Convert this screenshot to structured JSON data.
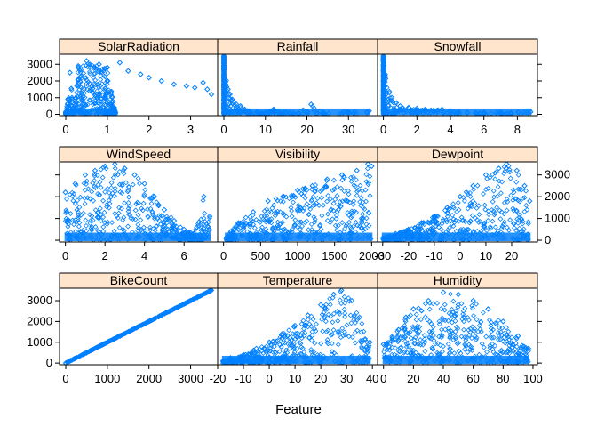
{
  "figure": {
    "xlabel": "Feature",
    "ylabel": "",
    "strip_color": "#ffe5cc",
    "point_color": "#0080ff",
    "y_ticks": [
      0,
      1000,
      2000,
      3000
    ],
    "ylim": [
      -80,
      3600
    ]
  },
  "chart_data": [
    {
      "type": "scatter",
      "title": "SolarRadiation",
      "xlabel": "",
      "ylabel": "",
      "xlim": [
        -0.15,
        3.65
      ],
      "xticks": [
        0,
        1,
        2,
        3
      ],
      "ylim": [
        -80,
        3600
      ],
      "shape": "solar",
      "points": [
        [
          0.0,
          150
        ],
        [
          0.05,
          900
        ],
        [
          0.1,
          2500
        ],
        [
          0.3,
          2900
        ],
        [
          0.5,
          3200
        ],
        [
          0.8,
          3000
        ],
        [
          1.0,
          2800
        ],
        [
          1.3,
          3100
        ],
        [
          1.5,
          2600
        ],
        [
          1.8,
          2400
        ],
        [
          2.0,
          2200
        ],
        [
          2.3,
          2000
        ],
        [
          2.6,
          1800
        ],
        [
          2.9,
          1700
        ],
        [
          3.1,
          1600
        ],
        [
          3.3,
          1900
        ],
        [
          3.4,
          1500
        ],
        [
          3.5,
          1200
        ],
        [
          0.2,
          200
        ],
        [
          1.2,
          100
        ]
      ]
    },
    {
      "type": "scatter",
      "title": "Rainfall",
      "xlabel": "",
      "ylabel": "",
      "xlim": [
        -1.5,
        37.0
      ],
      "xticks": [
        0,
        10,
        20,
        30
      ],
      "ylim": [
        -80,
        3600
      ],
      "shape": "decay",
      "points": [
        [
          0.0,
          3500
        ],
        [
          0.2,
          2800
        ],
        [
          1.0,
          1500
        ],
        [
          2.0,
          900
        ],
        [
          3.0,
          600
        ],
        [
          4.0,
          500
        ],
        [
          5.0,
          300
        ],
        [
          6.0,
          200
        ],
        [
          8.0,
          150
        ],
        [
          10.0,
          100
        ],
        [
          12.0,
          300
        ],
        [
          15.0,
          120
        ],
        [
          18.0,
          80
        ],
        [
          21.0,
          600
        ],
        [
          24.0,
          100
        ],
        [
          29.0,
          150
        ],
        [
          35.0,
          200
        ]
      ]
    },
    {
      "type": "scatter",
      "title": "Snowfall",
      "xlabel": "",
      "ylabel": "",
      "xlim": [
        -0.35,
        9.2
      ],
      "xticks": [
        0,
        2,
        4,
        6,
        8
      ],
      "ylim": [
        -80,
        3600
      ],
      "shape": "decay",
      "points": [
        [
          0.0,
          3500
        ],
        [
          0.1,
          2400
        ],
        [
          0.5,
          1000
        ],
        [
          1.0,
          500
        ],
        [
          1.5,
          400
        ],
        [
          2.0,
          350
        ],
        [
          2.5,
          300
        ],
        [
          3.0,
          250
        ],
        [
          3.5,
          300
        ],
        [
          4.0,
          200
        ],
        [
          4.5,
          150
        ],
        [
          5.0,
          100
        ],
        [
          5.5,
          80
        ],
        [
          6.0,
          100
        ],
        [
          7.0,
          120
        ],
        [
          8.8,
          150
        ]
      ]
    },
    {
      "type": "scatter",
      "title": "WindSpeed",
      "xlabel": "",
      "ylabel": "",
      "xlim": [
        -0.3,
        7.7
      ],
      "xticks": [
        0,
        2,
        4,
        6
      ],
      "ylim": [
        -80,
        3600
      ],
      "shape": "hump",
      "points": [
        [
          0.0,
          2200
        ],
        [
          0.5,
          2600
        ],
        [
          1.0,
          3000
        ],
        [
          1.5,
          3200
        ],
        [
          2.0,
          3400
        ],
        [
          2.5,
          3500
        ],
        [
          3.0,
          3300
        ],
        [
          3.5,
          3000
        ],
        [
          4.0,
          2600
        ],
        [
          4.5,
          2000
        ],
        [
          5.0,
          1400
        ],
        [
          5.5,
          900
        ],
        [
          6.0,
          500
        ],
        [
          6.5,
          300
        ],
        [
          7.0,
          2000
        ],
        [
          7.3,
          1100
        ]
      ]
    },
    {
      "type": "scatter",
      "title": "Visibility",
      "xlabel": "",
      "ylabel": "",
      "xlim": [
        -80,
        2080
      ],
      "xticks": [
        0,
        500,
        1000,
        1500,
        2000
      ],
      "ylim": [
        -80,
        3600
      ],
      "shape": "rising",
      "points": [
        [
          30,
          100
        ],
        [
          100,
          400
        ],
        [
          200,
          800
        ],
        [
          400,
          1300
        ],
        [
          600,
          1800
        ],
        [
          800,
          2000
        ],
        [
          1000,
          2300
        ],
        [
          1200,
          2500
        ],
        [
          1400,
          2800
        ],
        [
          1600,
          3000
        ],
        [
          1800,
          3200
        ],
        [
          1950,
          3500
        ],
        [
          2000,
          3400
        ]
      ]
    },
    {
      "type": "scatter",
      "title": "Dewpoint",
      "xlabel": "",
      "ylabel": "",
      "xlim": [
        -32,
        30
      ],
      "xticks": [
        -30,
        -20,
        -10,
        0,
        10,
        20
      ],
      "ylim": [
        -80,
        3600
      ],
      "shape": "rising",
      "points": [
        [
          -30,
          100
        ],
        [
          -25,
          300
        ],
        [
          -20,
          500
        ],
        [
          -15,
          800
        ],
        [
          -10,
          1100
        ],
        [
          -5,
          1500
        ],
        [
          0,
          2000
        ],
        [
          5,
          2500
        ],
        [
          10,
          3000
        ],
        [
          15,
          3300
        ],
        [
          18,
          3500
        ],
        [
          22,
          3200
        ],
        [
          25,
          2500
        ],
        [
          27,
          1800
        ]
      ]
    },
    {
      "type": "scatter",
      "title": "BikeCount",
      "xlabel": "",
      "ylabel": "",
      "xlim": [
        -150,
        3650
      ],
      "xticks": [
        0,
        1000,
        2000,
        3000
      ],
      "ylim": [
        -80,
        3600
      ],
      "shape": "identity",
      "points": [
        [
          0,
          0
        ],
        [
          500,
          500
        ],
        [
          1000,
          1000
        ],
        [
          1500,
          1500
        ],
        [
          2000,
          2000
        ],
        [
          2500,
          2500
        ],
        [
          3000,
          3000
        ],
        [
          3500,
          3500
        ]
      ]
    },
    {
      "type": "scatter",
      "title": "Temperature",
      "xlabel": "",
      "ylabel": "",
      "xlim": [
        -20,
        42
      ],
      "xticks": [
        -20,
        -10,
        0,
        10,
        20,
        30,
        40
      ],
      "ylim": [
        -80,
        3600
      ],
      "shape": "rising",
      "points": [
        [
          -18,
          100
        ],
        [
          -15,
          250
        ],
        [
          -10,
          400
        ],
        [
          -5,
          700
        ],
        [
          0,
          1000
        ],
        [
          5,
          1400
        ],
        [
          10,
          1800
        ],
        [
          15,
          2300
        ],
        [
          20,
          2800
        ],
        [
          25,
          3300
        ],
        [
          28,
          3500
        ],
        [
          32,
          3000
        ],
        [
          35,
          2200
        ],
        [
          39,
          1000
        ]
      ]
    },
    {
      "type": "scatter",
      "title": "Humidity",
      "xlabel": "",
      "ylabel": "",
      "xlim": [
        -4,
        103
      ],
      "xticks": [
        0,
        20,
        40,
        60,
        80,
        100
      ],
      "ylim": [
        -80,
        3600
      ],
      "shape": "hump",
      "points": [
        [
          0,
          900
        ],
        [
          10,
          1600
        ],
        [
          15,
          2200
        ],
        [
          20,
          2600
        ],
        [
          30,
          3000
        ],
        [
          40,
          3400
        ],
        [
          50,
          3300
        ],
        [
          60,
          3000
        ],
        [
          70,
          2600
        ],
        [
          80,
          2000
        ],
        [
          90,
          1300
        ],
        [
          97,
          700
        ]
      ]
    }
  ]
}
